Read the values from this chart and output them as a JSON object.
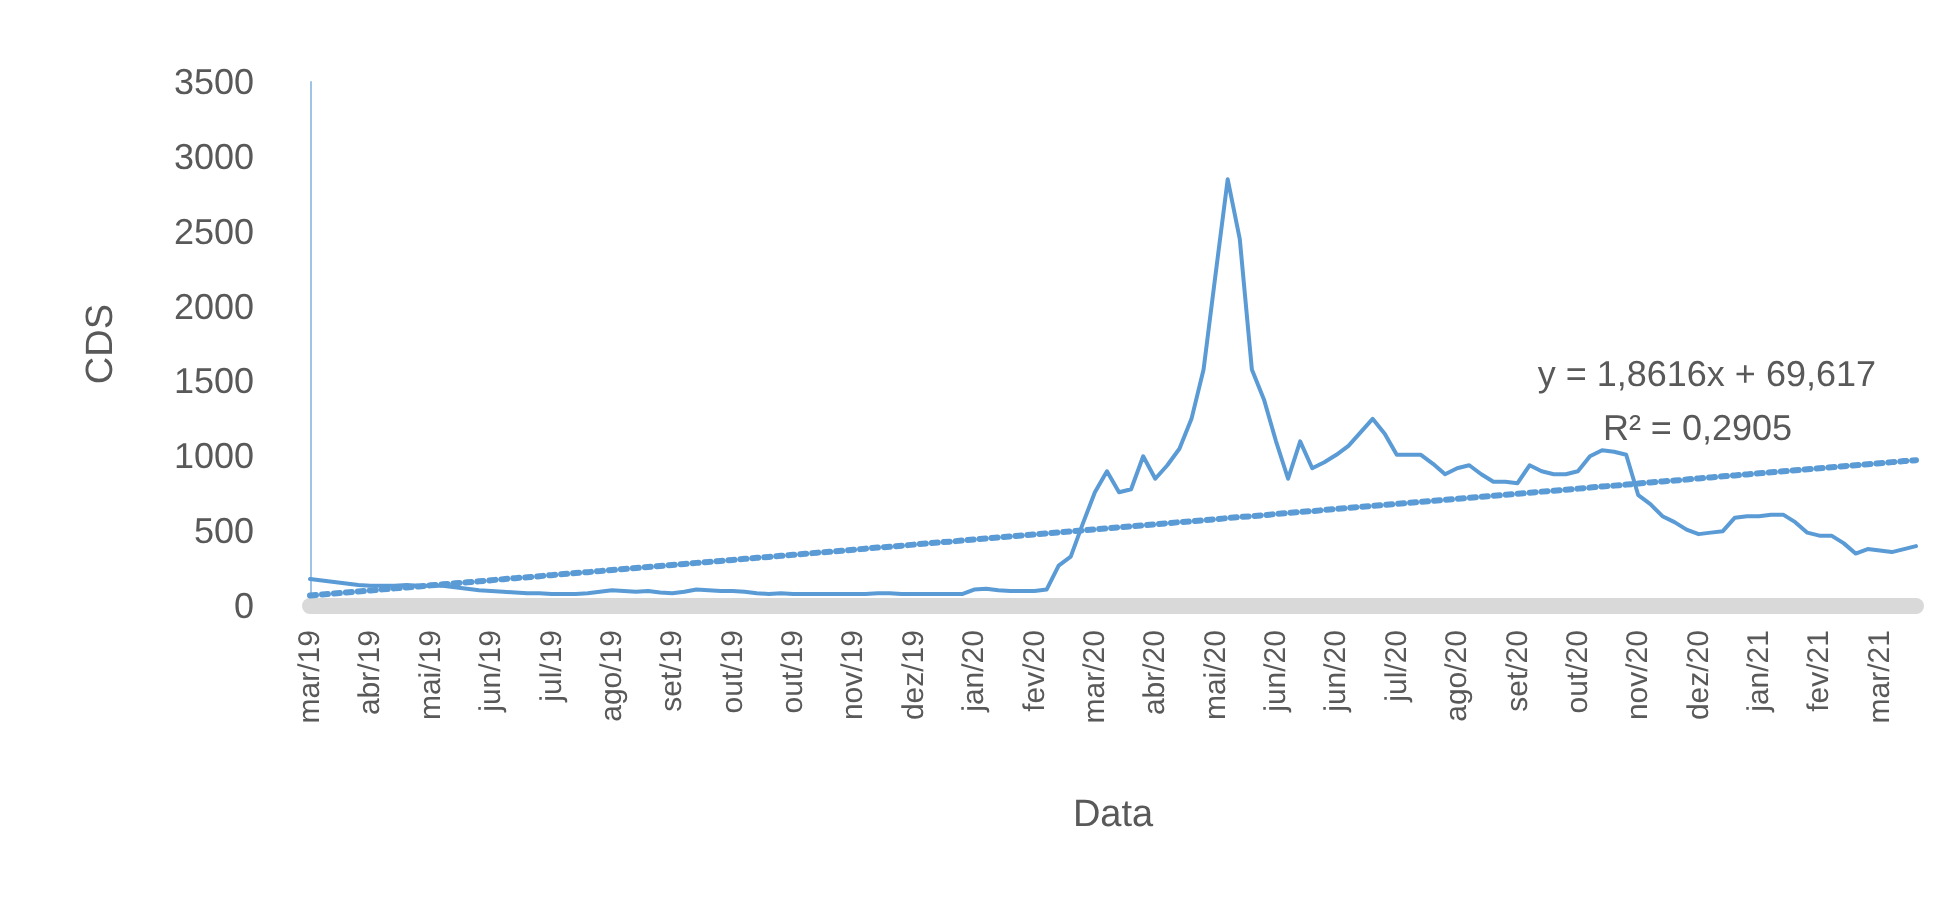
{
  "chart_data": {
    "type": "line",
    "xlabel": "Data",
    "ylabel": "CDS",
    "ylim": [
      0,
      3500
    ],
    "yticks": [
      0,
      500,
      1000,
      1500,
      2000,
      2500,
      3000,
      3500
    ],
    "categories": [
      "mar/19",
      null,
      null,
      null,
      null,
      "abr/19",
      null,
      null,
      null,
      null,
      "mai/19",
      null,
      null,
      null,
      null,
      "jun/19",
      null,
      null,
      null,
      null,
      "jul/19",
      null,
      null,
      null,
      null,
      "ago/19",
      null,
      null,
      null,
      null,
      "set/19",
      null,
      null,
      null,
      null,
      "out/19",
      null,
      null,
      null,
      null,
      "out/19",
      null,
      null,
      null,
      null,
      "nov/19",
      null,
      null,
      null,
      null,
      "dez/19",
      null,
      null,
      null,
      null,
      "jan/20",
      null,
      null,
      null,
      null,
      "fev/20",
      null,
      null,
      null,
      null,
      "mar/20",
      null,
      null,
      null,
      null,
      "abr/20",
      null,
      null,
      null,
      null,
      "mai/20",
      null,
      null,
      null,
      null,
      "jun/20",
      null,
      null,
      null,
      null,
      "jun/20",
      null,
      null,
      null,
      null,
      "jul/20",
      null,
      null,
      null,
      null,
      "ago/20",
      null,
      null,
      null,
      null,
      "set/20",
      null,
      null,
      null,
      null,
      "out/20",
      null,
      null,
      null,
      null,
      "nov/20",
      null,
      null,
      null,
      null,
      "dez/20",
      null,
      null,
      null,
      null,
      "jan/21",
      null,
      null,
      null,
      null,
      "fev/21",
      null,
      null,
      null,
      null,
      "mar/21",
      null,
      null,
      null
    ],
    "grid": false,
    "marker": "none",
    "series": [
      {
        "color": "#5b9bd5",
        "line_style": "solid",
        "values": [
          180,
          170,
          160,
          150,
          140,
          135,
          135,
          135,
          140,
          135,
          135,
          135,
          125,
          115,
          105,
          100,
          95,
          90,
          85,
          85,
          80,
          80,
          80,
          85,
          95,
          105,
          100,
          95,
          100,
          90,
          85,
          95,
          110,
          105,
          100,
          100,
          95,
          85,
          80,
          85,
          80,
          80,
          80,
          80,
          80,
          80,
          80,
          85,
          85,
          80,
          80,
          80,
          80,
          80,
          80,
          110,
          115,
          105,
          100,
          100,
          100,
          110,
          270,
          330,
          550,
          760,
          900,
          760,
          780,
          1000,
          850,
          940,
          1050,
          1250,
          1580,
          2220,
          2850,
          2450,
          1580,
          1380,
          1100,
          850,
          1100,
          920,
          960,
          1010,
          1070,
          1160,
          1250,
          1150,
          1010,
          1010,
          1010,
          950,
          880,
          920,
          940,
          880,
          830,
          830,
          820,
          940,
          900,
          880,
          880,
          900,
          1000,
          1040,
          1030,
          1010,
          740,
          680,
          600,
          560,
          510,
          480,
          490,
          500,
          590,
          600,
          600,
          610,
          610,
          560,
          490,
          470,
          470,
          420,
          350,
          380,
          370,
          360,
          380,
          400
        ]
      },
      {
        "color": "#5b9bd5",
        "line_style": "dotted",
        "values": [
          70,
          77,
          84,
          90,
          97,
          104,
          111,
          118,
          124,
          131,
          138,
          145,
          152,
          158,
          165,
          172,
          179,
          186,
          192,
          199,
          206,
          213,
          220,
          226,
          233,
          240,
          247,
          254,
          260,
          267,
          274,
          281,
          288,
          294,
          301,
          308,
          315,
          322,
          328,
          335,
          342,
          349,
          356,
          362,
          369,
          376,
          383,
          390,
          396,
          403,
          410,
          417,
          424,
          430,
          437,
          444,
          451,
          458,
          464,
          471,
          478,
          485,
          492,
          498,
          505,
          512,
          519,
          526,
          532,
          539,
          546,
          553,
          560,
          566,
          573,
          580,
          587,
          594,
          600,
          607,
          614,
          621,
          628,
          634,
          641,
          648,
          655,
          662,
          668,
          675,
          682,
          689,
          696,
          702,
          709,
          716,
          723,
          730,
          736,
          743,
          750,
          757,
          764,
          770,
          777,
          784,
          791,
          798,
          804,
          811,
          818,
          825,
          832,
          838,
          845,
          852,
          859,
          866,
          872,
          879,
          886,
          893,
          900,
          906,
          913,
          920,
          927,
          934,
          940,
          947,
          954,
          961,
          968,
          974
        ]
      }
    ],
    "annotations": [
      "y = 1,8616x + 69,617",
      "R² = 0,2905"
    ]
  }
}
